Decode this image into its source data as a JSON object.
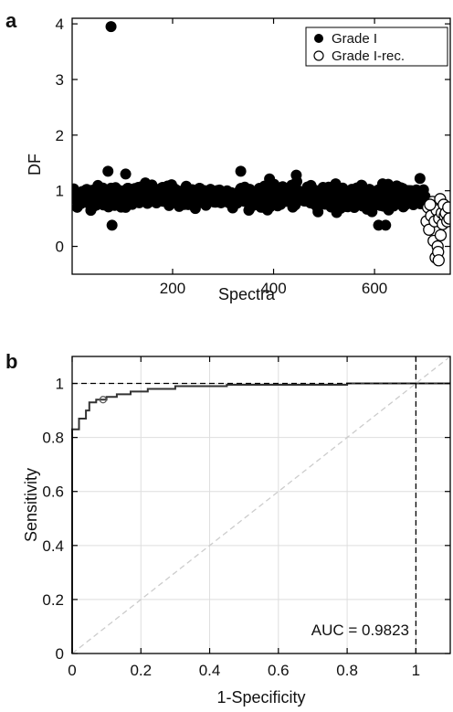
{
  "chart_data": [
    {
      "panel": "a",
      "type": "scatter",
      "title": "",
      "xlabel": "Spectra",
      "ylabel": "DF",
      "xlim": [
        1,
        750
      ],
      "ylim": [
        -0.5,
        4.1
      ],
      "xticks": [
        200,
        400,
        600
      ],
      "yticks": [
        0,
        1,
        2,
        3,
        4
      ],
      "grid": false,
      "legend_placement": "top-right",
      "series": [
        {
          "name": "Grade I",
          "marker": "filled-circle",
          "color": "#000000",
          "x_range": [
            1,
            700
          ],
          "typical_y": 0.9,
          "spread": 0.16,
          "outliers": [
            {
              "x": 78,
              "y": 3.95
            },
            {
              "x": 80,
              "y": 0.38
            },
            {
              "x": 72,
              "y": 1.35
            },
            {
              "x": 335,
              "y": 1.35
            },
            {
              "x": 445,
              "y": 1.28
            },
            {
              "x": 608,
              "y": 0.38
            },
            {
              "x": 622,
              "y": 0.38
            },
            {
              "x": 107,
              "y": 1.3
            },
            {
              "x": 690,
              "y": 1.22
            }
          ]
        },
        {
          "name": "Grade I-rec.",
          "marker": "open-circle",
          "color": "#000000",
          "points": [
            {
              "x": 703,
              "y": 0.45
            },
            {
              "x": 706,
              "y": 0.7
            },
            {
              "x": 708,
              "y": 0.3
            },
            {
              "x": 712,
              "y": 0.55
            },
            {
              "x": 715,
              "y": 0.8
            },
            {
              "x": 717,
              "y": 0.1
            },
            {
              "x": 719,
              "y": 0.45
            },
            {
              "x": 721,
              "y": -0.2
            },
            {
              "x": 723,
              "y": 0.65
            },
            {
              "x": 725,
              "y": 0.0
            },
            {
              "x": 726,
              "y": -0.1
            },
            {
              "x": 728,
              "y": 0.5
            },
            {
              "x": 730,
              "y": 0.85
            },
            {
              "x": 731,
              "y": 0.2
            },
            {
              "x": 733,
              "y": 0.6
            },
            {
              "x": 735,
              "y": 0.4
            },
            {
              "x": 737,
              "y": 0.75
            },
            {
              "x": 739,
              "y": 0.55
            },
            {
              "x": 741,
              "y": 0.6
            },
            {
              "x": 744,
              "y": 0.45
            },
            {
              "x": 746,
              "y": 0.7
            },
            {
              "x": 748,
              "y": 0.5
            },
            {
              "x": 710,
              "y": 0.75
            },
            {
              "x": 727,
              "y": -0.25
            }
          ]
        }
      ]
    },
    {
      "panel": "b",
      "type": "line",
      "title": "",
      "xlabel": "1-Specificity",
      "ylabel": "Sensitivity",
      "xlim": [
        0,
        1.1
      ],
      "ylim": [
        0,
        1.1
      ],
      "xticks": [
        0,
        0.2,
        0.4,
        0.6,
        0.8,
        1
      ],
      "xtick_labels": [
        "0",
        "0.2",
        "0.4",
        "0.6",
        "0.8",
        "1"
      ],
      "yticks": [
        0,
        0.2,
        0.4,
        0.6,
        0.8,
        1
      ],
      "ytick_labels": [
        "0",
        "0.2",
        "0.4",
        "0.6",
        "0.8",
        "1"
      ],
      "grid": true,
      "annotation": "AUC = 0.9823",
      "operating_point": {
        "x": 0.09,
        "y": 0.94
      },
      "series": [
        {
          "style": "step",
          "color": "#333333",
          "points": [
            [
              0,
              0
            ],
            [
              0,
              0.83
            ],
            [
              0.02,
              0.83
            ],
            [
              0.02,
              0.87
            ],
            [
              0.04,
              0.87
            ],
            [
              0.04,
              0.9
            ],
            [
              0.05,
              0.9
            ],
            [
              0.05,
              0.93
            ],
            [
              0.07,
              0.93
            ],
            [
              0.07,
              0.94
            ],
            [
              0.1,
              0.94
            ],
            [
              0.1,
              0.95
            ],
            [
              0.13,
              0.95
            ],
            [
              0.13,
              0.96
            ],
            [
              0.17,
              0.96
            ],
            [
              0.17,
              0.97
            ],
            [
              0.22,
              0.97
            ],
            [
              0.22,
              0.98
            ],
            [
              0.3,
              0.98
            ],
            [
              0.3,
              0.99
            ],
            [
              0.45,
              0.99
            ],
            [
              0.45,
              0.995
            ],
            [
              0.8,
              0.995
            ],
            [
              0.8,
              1.0
            ],
            [
              1.1,
              1.0
            ]
          ]
        },
        {
          "style": "dashed",
          "color": "#cccccc",
          "points": [
            [
              0,
              0
            ],
            [
              1.1,
              1.1
            ]
          ]
        },
        {
          "style": "dashed",
          "color": "#000000",
          "points": [
            [
              0,
              1
            ],
            [
              1.1,
              1
            ]
          ]
        },
        {
          "style": "dashed",
          "color": "#000000",
          "points": [
            [
              1,
              0
            ],
            [
              1,
              1.1
            ]
          ]
        }
      ]
    }
  ]
}
